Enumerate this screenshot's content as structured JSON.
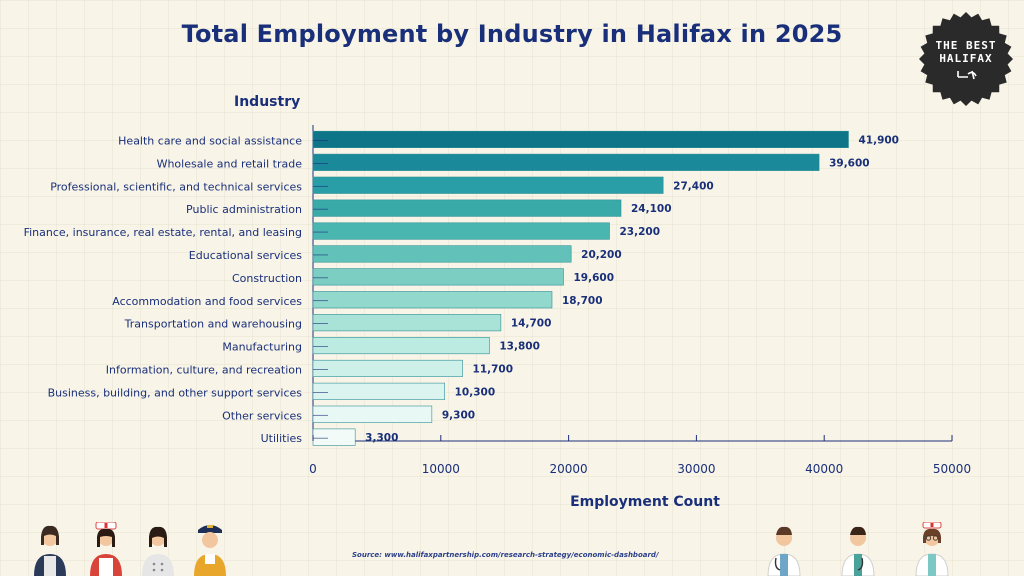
{
  "header": {
    "title": "Total Employment by Industry in Halifax in 2025"
  },
  "badge": {
    "text_line1": "THE BEST",
    "text_line2": "HALIFAX",
    "background_color": "#2a2a2a"
  },
  "footer": {
    "source": "Source: www.halifaxpartnership.com/research-strategy/economic-dashboard/"
  },
  "chart_data": {
    "type": "bar",
    "orientation": "horizontal",
    "ylabel": "Industry",
    "xlabel": "Employment Count",
    "xlim": [
      0,
      50000
    ],
    "xticks": [
      "0",
      "10000",
      "20000",
      "30000",
      "40000",
      "50000"
    ],
    "grid": false,
    "categories": [
      "Health care and social assistance",
      "Wholesale and retail trade",
      "Professional, scientific, and technical services",
      "Public administration",
      "Finance, insurance, real estate, rental, and leasing",
      "Educational services",
      "Construction",
      "Accommodation and food services",
      "Transportation and warehousing",
      "Manufacturing",
      "Information, culture, and recreation",
      "Business, building, and other support services",
      "Other services",
      "Utilities"
    ],
    "values": [
      41900,
      39600,
      27400,
      24100,
      23200,
      20200,
      19600,
      18700,
      14700,
      13800,
      11700,
      10300,
      9300,
      3300
    ],
    "value_labels": [
      "41,900",
      "39,600",
      "27,400",
      "24,100",
      "23,200",
      "20,200",
      "19,600",
      "18,700",
      "14,700",
      "13,800",
      "11,700",
      "10,300",
      "9,300",
      "3,300"
    ],
    "bar_colors": [
      "#0e7487",
      "#1a8a9a",
      "#2a9ea6",
      "#3aaaa9",
      "#4ab6b0",
      "#62c2b9",
      "#7ccdc2",
      "#93d8cc",
      "#a9e2d6",
      "#bcebe1",
      "#cdf0e9",
      "#dbf4ef",
      "#e8f8f4",
      "#f3fbf9"
    ],
    "text_color": "#1a2f7a"
  },
  "decorations": {
    "left_people": [
      "teacher-icon",
      "nurse-icon",
      "chef-icon",
      "pilot-icon"
    ],
    "right_people": [
      "doctor-icon",
      "doctor-icon",
      "nurse-icon"
    ]
  }
}
